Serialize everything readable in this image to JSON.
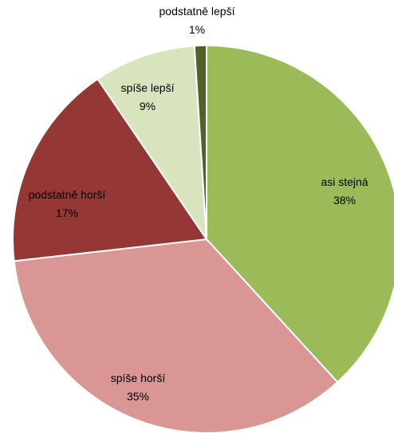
{
  "chart_data": {
    "type": "pie",
    "start_angle_deg": 0,
    "direction": "clockwise",
    "slices": [
      {
        "label": "asi stejná",
        "percent_label": "38%",
        "value": 38.2,
        "color": "#9BBB59"
      },
      {
        "label": "spíše horší",
        "percent_label": "35%",
        "value": 35.0,
        "color": "#D99694"
      },
      {
        "label": "podstatně horší",
        "percent_label": "17%",
        "value": 17.3,
        "color": "#953735"
      },
      {
        "label": "spíše lepší",
        "percent_label": "9%",
        "value": 8.5,
        "color": "#D7E4BD"
      },
      {
        "label": "podstatně lepší",
        "percent_label": "1%",
        "value": 1.0,
        "color": "#4F6228"
      }
    ]
  }
}
